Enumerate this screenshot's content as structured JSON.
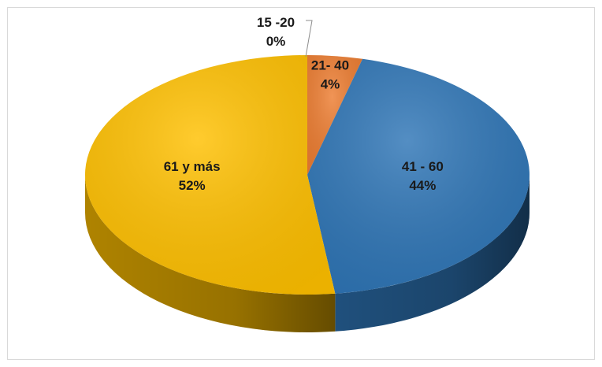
{
  "chart_data": {
    "type": "pie",
    "title": "",
    "categories": [
      "15 -20",
      "21- 40",
      "41 - 60",
      "61 y más"
    ],
    "values": [
      0,
      4,
      44,
      52
    ],
    "labels": [
      "0%",
      "4%",
      "44%",
      "52%"
    ],
    "colors": [
      "#a5a5a5",
      "#ed7d31",
      "#2e75b6",
      "#ffc000"
    ],
    "legend": "none",
    "three_d": true
  }
}
